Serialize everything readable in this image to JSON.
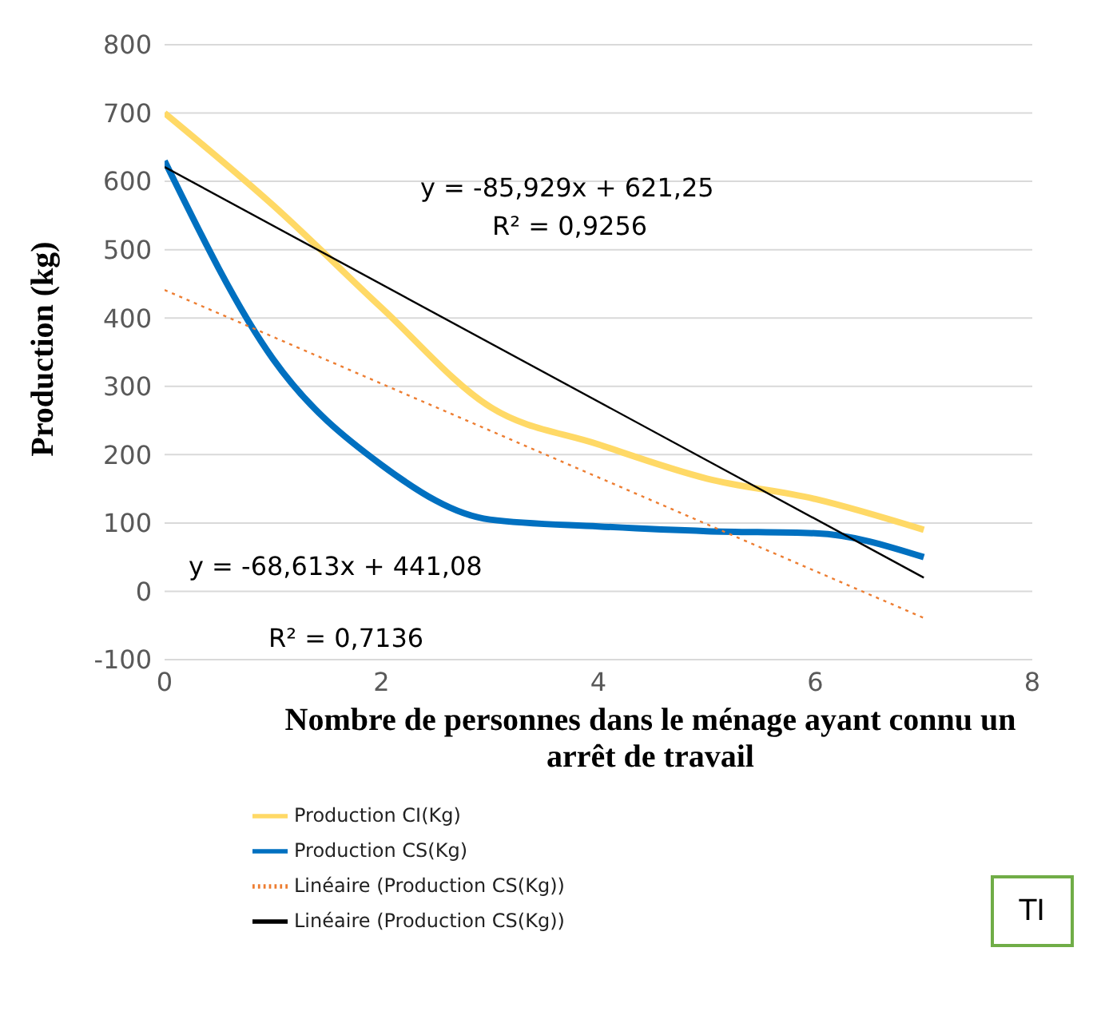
{
  "chart_data": {
    "type": "line",
    "xlabel": "Nombre de personnes dans le ménage ayant connu un arrêt de travail",
    "ylabel": "Production (kg)",
    "xlim": [
      0,
      8
    ],
    "xticks": [
      0,
      2,
      4,
      6,
      8
    ],
    "ylim": [
      -100,
      800
    ],
    "yticks": [
      -100,
      0,
      100,
      200,
      300,
      400,
      500,
      600,
      700,
      800
    ],
    "grid": "y",
    "legend": "bottom left",
    "marker": "none",
    "series": [
      {
        "name": "Production CI(Kg)",
        "color": "#ffd966",
        "x": [
          0,
          1,
          2,
          3,
          4,
          5,
          6,
          7
        ],
        "values": [
          700,
          565,
          415,
          270,
          215,
          165,
          135,
          90
        ],
        "line_style": "solid"
      },
      {
        "name": "Production CS(Kg)",
        "color": "#0070c0",
        "x": [
          0,
          1,
          2,
          3,
          4,
          5,
          6,
          7
        ],
        "values": [
          630,
          340,
          185,
          105,
          95,
          88,
          85,
          50
        ],
        "line_style": "solid"
      },
      {
        "name": "Linéaire (Production CS(Kg))",
        "color": "#ed7d31",
        "x": [
          0,
          7
        ],
        "values": [
          441,
          -39
        ],
        "line_style": "dotted"
      },
      {
        "name": "Linéaire (Production CS(Kg))",
        "color": "#000000",
        "x": [
          0,
          7
        ],
        "values": [
          621,
          20
        ],
        "line_style": "solid"
      }
    ],
    "annotations": [
      "y = -85,929x + 621,25",
      "R² = 0,9256",
      "y = -68,613x + 441,08",
      "R² = 0,7136",
      "TI"
    ]
  }
}
